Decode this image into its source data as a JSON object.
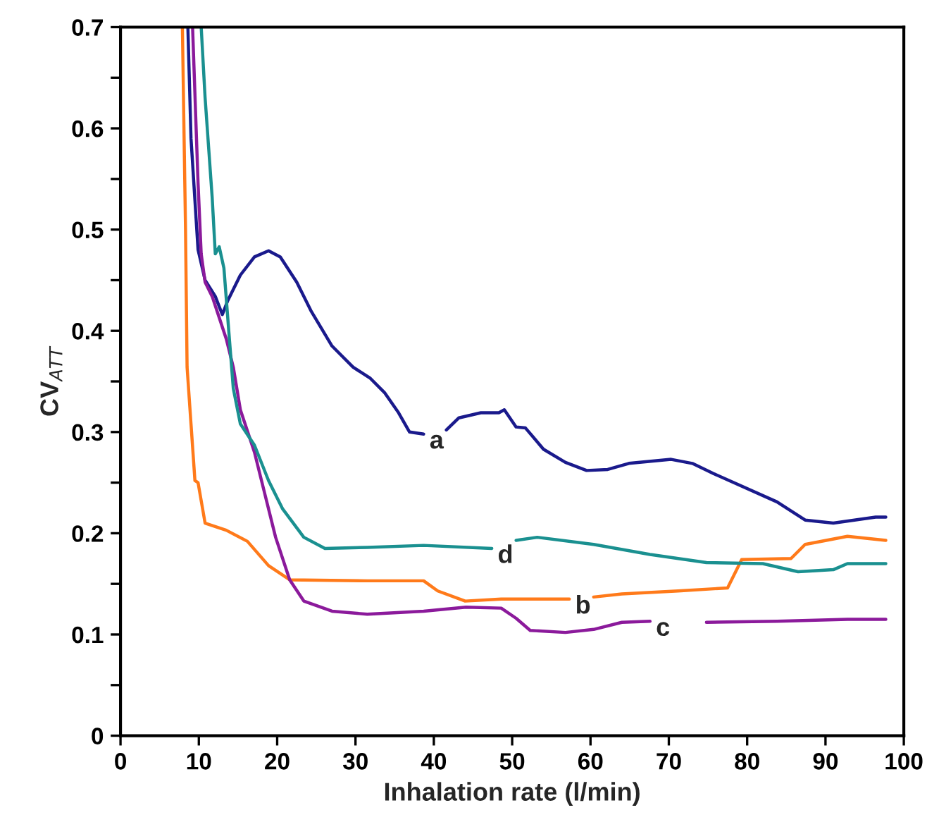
{
  "chart_data": {
    "type": "line",
    "xlabel": "Inhalation rate (l/min)",
    "ylabel": "CV$_{ATT}$",
    "xlim": [
      0,
      100
    ],
    "ylim": [
      0,
      0.7
    ],
    "xticks": [
      0,
      10,
      20,
      30,
      40,
      50,
      60,
      70,
      80,
      90,
      100
    ],
    "yticks": [
      0,
      {
        "value": 0.05,
        "label": null
      },
      0.1,
      {
        "value": 0.15,
        "label": null
      },
      0.2,
      {
        "value": 0.25,
        "label": null
      },
      0.3,
      {
        "value": 0.35,
        "label": null
      },
      0.4,
      {
        "value": 0.45,
        "label": null
      },
      0.5,
      {
        "value": 0.55,
        "label": null
      },
      0.6,
      {
        "value": 0.65,
        "label": null
      },
      0.7
    ],
    "grid": false,
    "legend": false,
    "marker": "none",
    "line_style": "solid",
    "series": [
      {
        "name": "a",
        "color": "#1a1a8c",
        "x": [
          8.6,
          9.0,
          9.9,
          10.8,
          12.1,
          13.0,
          13.7,
          15.3,
          17.1,
          18.9,
          20.4,
          22.5,
          24.3,
          27.0,
          29.7,
          31.9,
          33.7,
          35.5,
          36.9,
          38.7,
          40.0,
          41.6,
          43.2,
          46.0,
          48.3,
          49.0,
          50.5,
          51.7,
          54.0,
          56.8,
          59.5,
          62.2,
          64.9,
          70.3,
          73.0,
          75.7,
          83.8,
          87.4,
          91.0,
          96.4,
          97.7
        ],
        "values": [
          0.7,
          0.59,
          0.48,
          0.45,
          0.434,
          0.416,
          0.43,
          0.455,
          0.473,
          0.479,
          0.473,
          0.448,
          0.42,
          0.385,
          0.364,
          0.353,
          0.339,
          0.319,
          0.3,
          0.298,
          null,
          0.302,
          0.314,
          0.319,
          0.319,
          0.322,
          0.305,
          0.304,
          0.283,
          0.27,
          0.262,
          0.263,
          0.269,
          0.273,
          0.269,
          0.259,
          0.231,
          0.213,
          0.21,
          0.216,
          0.216
        ]
      },
      {
        "name": "b",
        "color": "#ff7a1a",
        "x": [
          7.9,
          8.3,
          8.5,
          9.0,
          9.5,
          9.9,
          10.8,
          13.5,
          16.2,
          18.9,
          21.6,
          31.5,
          38.7,
          40.5,
          44.0,
          48.6,
          57.3,
          58.9,
          60.4,
          64.0,
          71.2,
          77.5,
          79.3,
          85.6,
          87.4,
          92.8,
          97.7
        ],
        "values": [
          0.7,
          0.5,
          0.364,
          0.308,
          0.252,
          0.25,
          0.21,
          0.203,
          0.192,
          0.168,
          0.154,
          0.153,
          0.153,
          0.143,
          0.133,
          0.135,
          0.135,
          null,
          0.137,
          0.14,
          0.143,
          0.146,
          0.174,
          0.175,
          0.189,
          0.197,
          0.193
        ]
      },
      {
        "name": "c",
        "color": "#8b1a9b",
        "x": [
          9.2,
          9.9,
          10.3,
          10.8,
          11.7,
          12.6,
          13.5,
          14.4,
          15.3,
          17.1,
          18.0,
          19.8,
          21.6,
          23.4,
          27.0,
          31.5,
          38.7,
          44.1,
          48.6,
          50.5,
          52.3,
          56.8,
          60.4,
          64.0,
          67.6,
          71.0,
          74.8,
          83.8,
          92.8,
          97.7
        ],
        "values": [
          0.7,
          0.546,
          0.476,
          0.448,
          0.434,
          0.413,
          0.392,
          0.364,
          0.322,
          0.28,
          0.252,
          0.196,
          0.154,
          0.133,
          0.123,
          0.12,
          0.123,
          0.127,
          0.126,
          0.116,
          0.104,
          0.102,
          0.105,
          0.112,
          0.113,
          null,
          0.112,
          0.113,
          0.115,
          0.115
        ]
      },
      {
        "name": "d",
        "color": "#1a9090",
        "x": [
          10.3,
          10.8,
          11.7,
          12.1,
          12.6,
          13.2,
          13.9,
          14.4,
          15.3,
          17.1,
          18.9,
          20.7,
          23.4,
          26.1,
          31.5,
          38.7,
          47.4,
          49.0,
          50.5,
          53.2,
          60.4,
          67.6,
          74.8,
          82.0,
          86.5,
          91.0,
          92.8,
          97.7
        ],
        "values": [
          0.7,
          0.63,
          0.532,
          0.476,
          0.483,
          0.462,
          0.392,
          0.343,
          0.308,
          0.287,
          0.252,
          0.224,
          0.196,
          0.185,
          0.186,
          0.188,
          0.185,
          null,
          0.193,
          0.196,
          0.189,
          0.179,
          0.171,
          0.17,
          0.162,
          0.164,
          0.17,
          0.17
        ]
      }
    ]
  }
}
